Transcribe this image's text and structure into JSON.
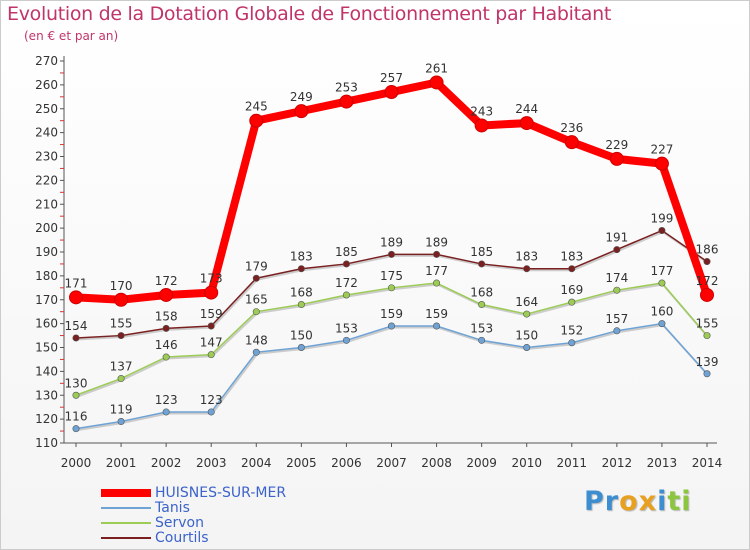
{
  "chart_data": {
    "type": "line",
    "title": "Evolution de la Dotation Globale de Fonctionnement par Habitant",
    "subtitle": "(en € et par an)",
    "x": [
      "2000",
      "2001",
      "2002",
      "2003",
      "2004",
      "2005",
      "2006",
      "2007",
      "2008",
      "2009",
      "2010",
      "2011",
      "2012",
      "2013",
      "2014"
    ],
    "ylim": [
      110,
      270
    ],
    "yticks": [
      110,
      120,
      130,
      140,
      150,
      160,
      170,
      180,
      190,
      200,
      210,
      220,
      230,
      240,
      250,
      260,
      270
    ],
    "grid": false,
    "legend_position": "bottom-left",
    "series": [
      {
        "name": "HUISNES-SUR-MER",
        "color": "#ff0000",
        "values": [
          171,
          170,
          172,
          173,
          245,
          249,
          253,
          257,
          261,
          243,
          244,
          236,
          229,
          227,
          172
        ]
      },
      {
        "name": "Tanis",
        "color": "#6fa3d6",
        "values": [
          116,
          119,
          123,
          123,
          148,
          150,
          153,
          159,
          159,
          153,
          150,
          152,
          157,
          160,
          139
        ]
      },
      {
        "name": "Servon",
        "color": "#9ccc55",
        "values": [
          130,
          137,
          146,
          147,
          165,
          168,
          172,
          175,
          177,
          168,
          164,
          169,
          174,
          177,
          155
        ]
      },
      {
        "name": "Courtils",
        "color": "#7a2020",
        "values": [
          154,
          155,
          158,
          159,
          179,
          183,
          185,
          189,
          189,
          185,
          183,
          183,
          191,
          199,
          186
        ]
      }
    ]
  },
  "branding": {
    "logo_letters": [
      "P",
      "r",
      "o",
      "x",
      "i",
      "t",
      "i"
    ],
    "logo_colors": [
      "#3c8ed1",
      "#3c8ed1",
      "#e8a020",
      "#e8a020",
      "#3c8ed1",
      "#8cc63f",
      "#8cc63f"
    ]
  }
}
